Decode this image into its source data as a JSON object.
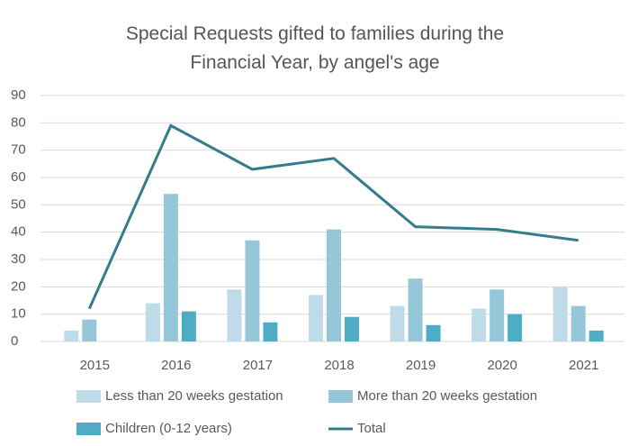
{
  "chart_data": {
    "type": "bar_line",
    "title": "Special Requests gifted to families during the Financial Year, by angel's age",
    "categories": [
      "2015",
      "2016",
      "2017",
      "2018",
      "2019",
      "2020",
      "2021"
    ],
    "series": [
      {
        "name": "Less than 20 weeks gestation",
        "type": "bar",
        "color": "#bfdbe7",
        "values": [
          4,
          14,
          19,
          17,
          13,
          12,
          20
        ]
      },
      {
        "name": "More than 20 weeks gestation",
        "type": "bar",
        "color": "#95c7d9",
        "values": [
          8,
          54,
          37,
          41,
          23,
          19,
          13
        ]
      },
      {
        "name": "Children (0-12 years)",
        "type": "bar",
        "color": "#4eacc5",
        "values": [
          0,
          11,
          7,
          9,
          6,
          10,
          4
        ]
      },
      {
        "name": "Total",
        "type": "line",
        "color": "#347c8c",
        "values": [
          12,
          79,
          63,
          67,
          42,
          41,
          37
        ]
      }
    ],
    "ylim": [
      0,
      90
    ],
    "yticks": [
      0,
      10,
      20,
      30,
      40,
      50,
      60,
      70,
      80,
      90
    ],
    "grid": true
  }
}
